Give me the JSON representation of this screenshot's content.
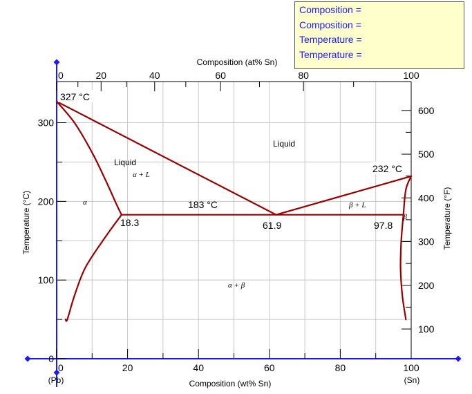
{
  "readout": [
    {
      "label": "Composition =",
      "value": ""
    },
    {
      "label": "Composition =",
      "value": ""
    },
    {
      "label": "Temperature =",
      "value": ""
    },
    {
      "label": "Temperature =",
      "value": ""
    }
  ],
  "axes": {
    "top_label": "Composition (at% Sn)",
    "bottom_label": "Composition (wt% Sn)",
    "left_label": "Temperature (°C)",
    "right_label": "Temperature (°F)",
    "bottom_ticks": [
      "0",
      "20",
      "40",
      "60",
      "80",
      "100"
    ],
    "top_ticks": [
      "0",
      "20",
      "40",
      "60",
      "80",
      "100"
    ],
    "left_ticks": [
      "0",
      "100",
      "200",
      "300"
    ],
    "right_ticks": [
      "100",
      "200",
      "300",
      "400",
      "500",
      "600"
    ],
    "left_end_label": "(Pb)",
    "right_end_label": "(Sn)"
  },
  "labels": {
    "pb_melt": "327 °C",
    "sn_melt": "232 °C",
    "eutectic_temp": "183 °C",
    "alpha_limit": "18.3",
    "eutectic_comp": "61.9",
    "beta_limit": "97.8",
    "liquid_top": "Liquid",
    "liquid_left": "Liquid",
    "alpha_plus_l": "α + L",
    "beta_plus_l": "β + L",
    "alpha": "α",
    "beta": "β",
    "alpha_plus_beta": "α + β"
  },
  "chart_data": {
    "type": "phase-diagram",
    "system": "Pb–Sn",
    "xlabel": "Composition (wt% Sn)",
    "x2label": "Composition (at% Sn)",
    "ylabel": "Temperature (°C)",
    "y2label": "Temperature (°F)",
    "xlim": [
      0,
      100
    ],
    "ylim": [
      0,
      340
    ],
    "y2lim": [
      32,
      644
    ],
    "grid": true,
    "line_color": "#990000",
    "axis_color": "#1a1aff",
    "invariant_points": {
      "pb_melting": {
        "x": 0,
        "y": 327
      },
      "sn_melting": {
        "x": 100,
        "y": 232
      },
      "eutectic": {
        "x": 61.9,
        "y": 183
      },
      "alpha_max_solubility": {
        "x": 18.3,
        "y": 183
      },
      "beta_max_solubility": {
        "x": 97.8,
        "y": 183
      }
    },
    "curves": [
      {
        "name": "liquidus-left",
        "points": [
          [
            0,
            327
          ],
          [
            61.9,
            183
          ]
        ]
      },
      {
        "name": "liquidus-right",
        "points": [
          [
            61.9,
            183
          ],
          [
            100,
            232
          ]
        ]
      },
      {
        "name": "solidus-alpha",
        "points": [
          [
            0,
            327
          ],
          [
            5,
            300
          ],
          [
            10,
            262
          ],
          [
            14,
            225
          ],
          [
            17,
            195
          ],
          [
            18.3,
            183
          ]
        ]
      },
      {
        "name": "solidus-beta",
        "points": [
          [
            97.8,
            183
          ],
          [
            98.5,
            215
          ],
          [
            100,
            232
          ]
        ]
      },
      {
        "name": "eutectic-isotherm",
        "points": [
          [
            18.3,
            183
          ],
          [
            97.8,
            183
          ]
        ]
      },
      {
        "name": "solvus-alpha",
        "points": [
          [
            18.3,
            183
          ],
          [
            13,
            150
          ],
          [
            8,
            115
          ],
          [
            5,
            80
          ],
          [
            3,
            50
          ],
          [
            2.5,
            50
          ]
        ]
      },
      {
        "name": "solvus-beta",
        "points": [
          [
            97.8,
            183
          ],
          [
            97.2,
            150
          ],
          [
            97.0,
            115
          ],
          [
            97.5,
            80
          ],
          [
            98.5,
            50
          ]
        ]
      }
    ]
  }
}
